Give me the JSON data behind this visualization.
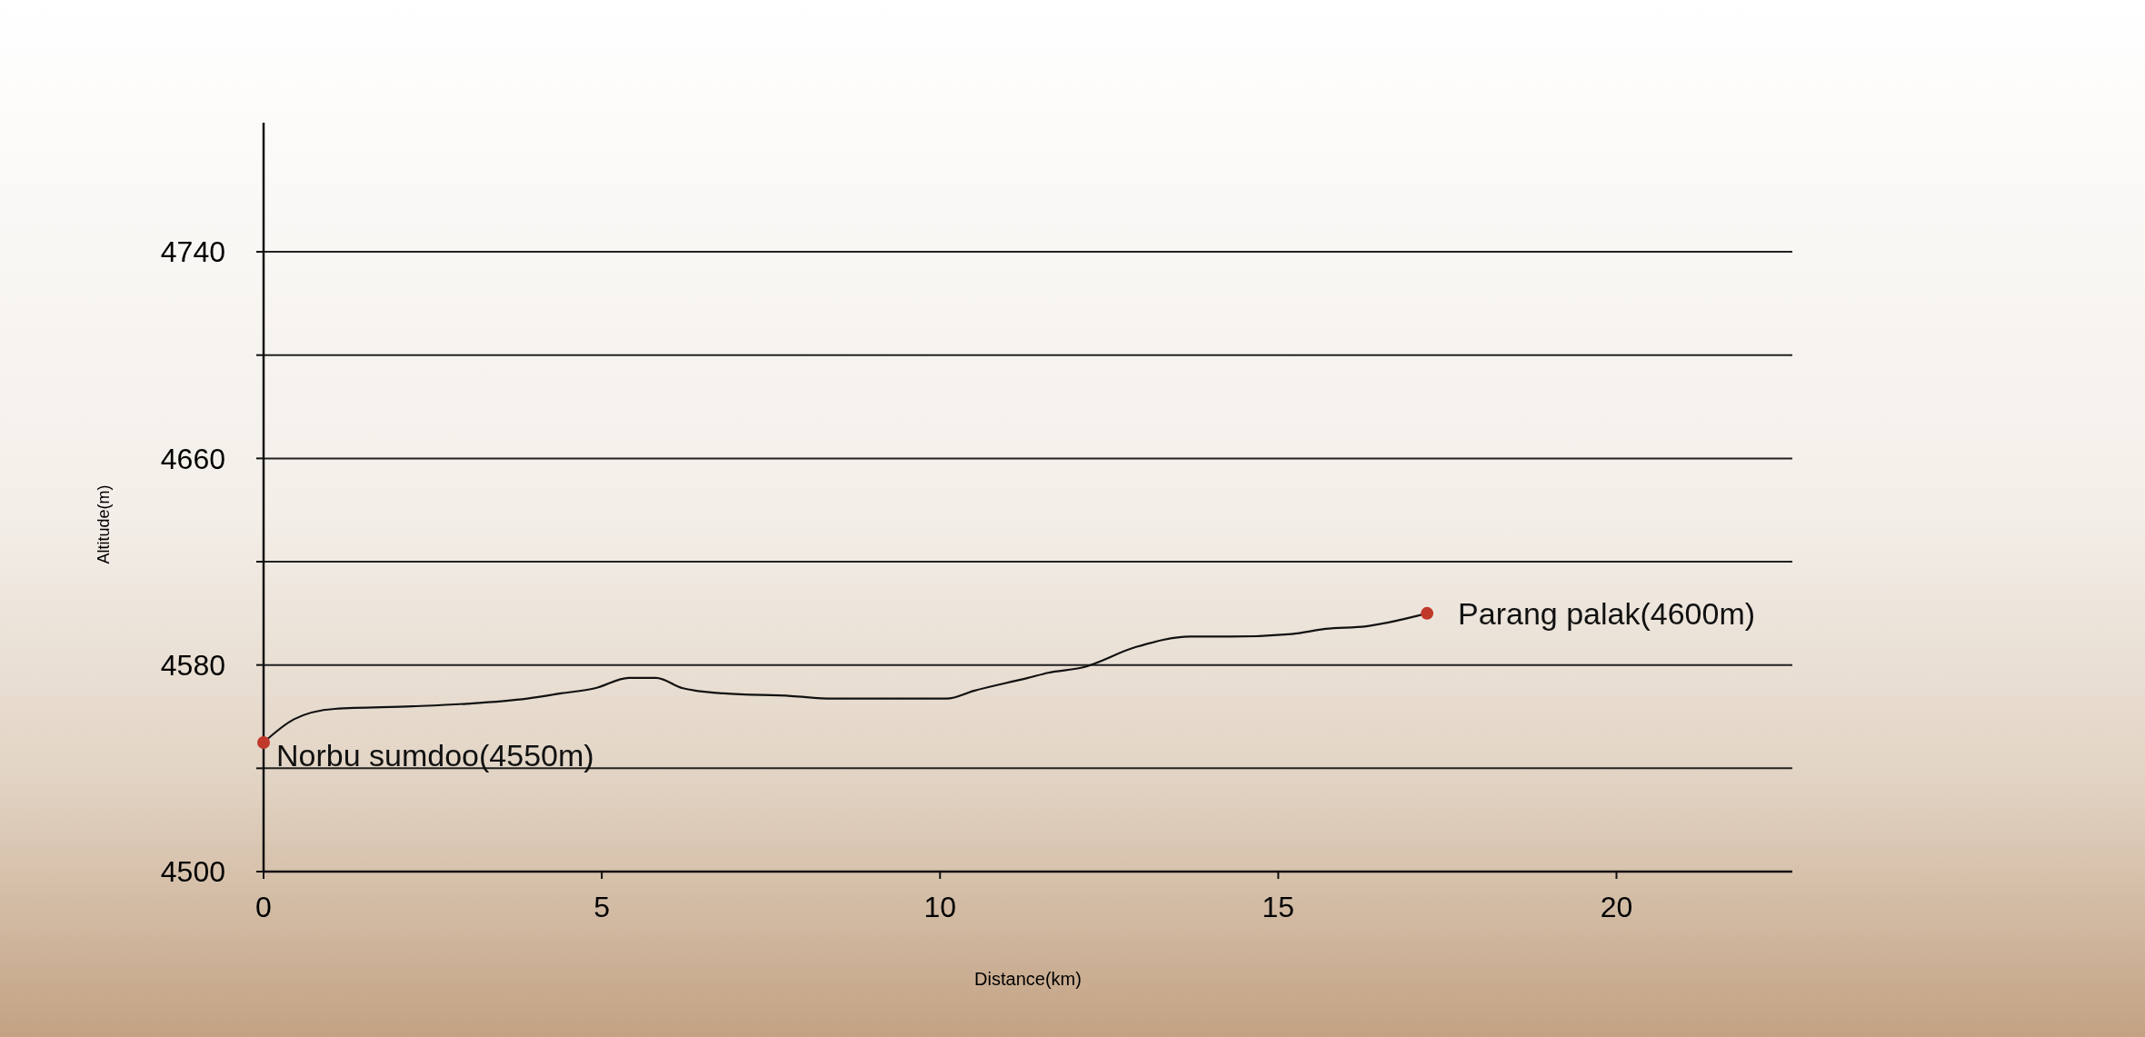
{
  "chart_data": {
    "type": "line",
    "xlabel": "Distance(km)",
    "ylabel": "Altitude(m)",
    "xlim": [
      0,
      22.6
    ],
    "xticks": [
      0,
      5,
      10,
      15,
      20
    ],
    "ylim": [
      4500,
      4790
    ],
    "yticks": [
      4500,
      {
        "value": 4540,
        "label": null
      },
      4580,
      {
        "value": 4620,
        "label": null
      },
      4660,
      {
        "value": 4700,
        "label": null
      },
      4740
    ],
    "grid": "y",
    "series": [
      {
        "color": "#111111",
        "marker": "none",
        "x": [
          0,
          0.45,
          1.05,
          2.2,
          3.0,
          3.9,
          4.4,
          4.9,
          5.4,
          5.8,
          6.2,
          6.8,
          7.8,
          8.4,
          9.5,
          10.1,
          10.5,
          11.3,
          11.6,
          12.1,
          12.9,
          13.7,
          14.3,
          15.2,
          15.7,
          16.3,
          17.2
        ],
        "values": [
          4550,
          4559,
          4563,
          4564,
          4565,
          4567,
          4569,
          4571,
          4575,
          4575,
          4571,
          4569,
          4568,
          4567,
          4567,
          4567,
          4570,
          4575,
          4577,
          4579,
          4587,
          4591,
          4591,
          4592,
          4594,
          4595,
          4600
        ]
      },
      {
        "type": "scatter",
        "color": "#c0392b",
        "marker": "circle",
        "x": [
          0,
          17.2
        ],
        "values": [
          4550,
          4600
        ]
      }
    ],
    "annotations": [
      {
        "text": "Norbu sumdoo(4550m)",
        "x": 0,
        "y": 4550
      },
      {
        "text": "Parang palak(4600m)",
        "x": 17.2,
        "y": 4600
      }
    ]
  }
}
